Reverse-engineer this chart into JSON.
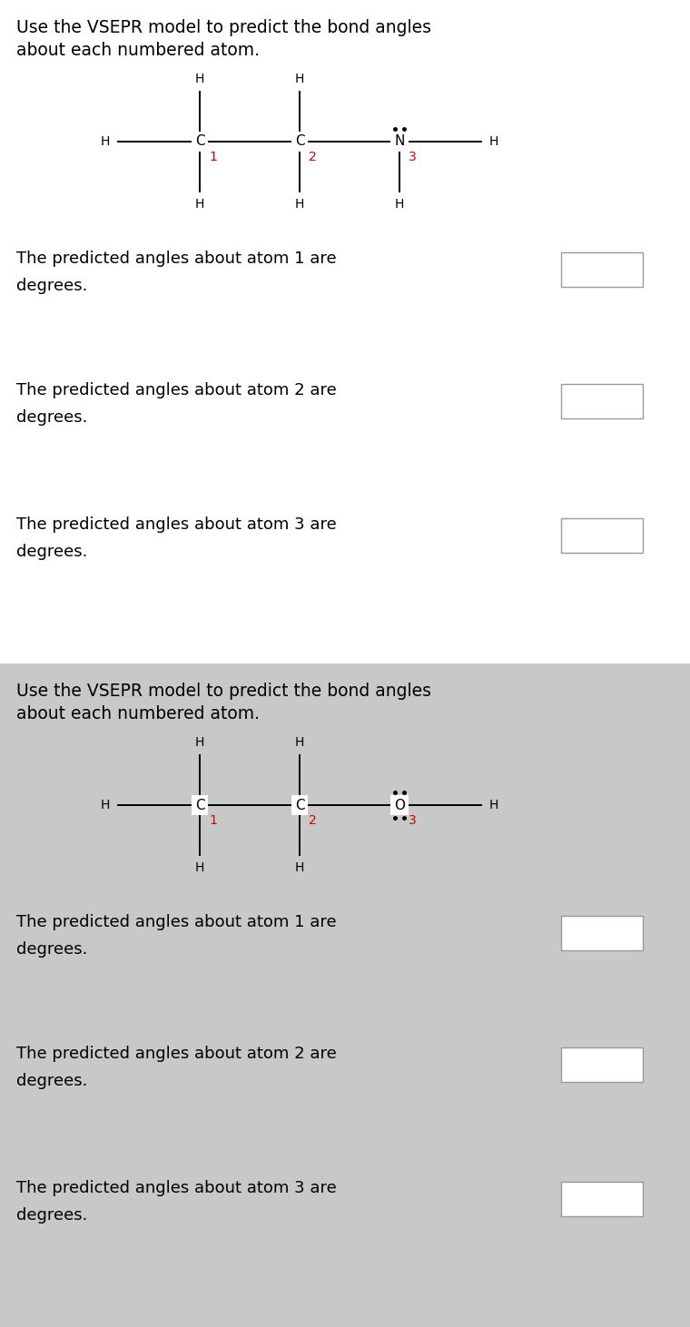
{
  "panel1": {
    "title": "Use the VSEPR model to predict the bond angles\nabout each numbered atom.",
    "atom1_label": "C",
    "atom2_label": "C",
    "atom3_label": "N",
    "atom3_has_lone_pair_top": true,
    "atom3_has_lone_pair_bottom": false,
    "atom3_has_H_bottom": true,
    "questions": [
      "The predicted angles about atom 1 are",
      "The predicted angles about atom 2 are",
      "The predicted angles about atom 3 are"
    ],
    "bg_color": "#ffffff"
  },
  "panel2": {
    "title": "Use the VSEPR model to predict the bond angles\nabout each numbered atom.",
    "atom1_label": "C",
    "atom2_label": "C",
    "atom3_label": "O",
    "atom3_has_lone_pair_top": true,
    "atom3_has_lone_pair_bottom": true,
    "atom3_has_H_bottom": false,
    "questions": [
      "The predicted angles about atom 1 are",
      "The predicted angles about atom 2 are",
      "The predicted angles about atom 3 are"
    ],
    "bg_color": "#c8c8c8"
  },
  "text_color": "#000000",
  "red_color": "#cc0000",
  "bond_color": "#000000",
  "font_size_title": 13.5,
  "font_size_body": 13,
  "font_size_atom": 11,
  "font_size_H": 10,
  "font_size_num": 10
}
